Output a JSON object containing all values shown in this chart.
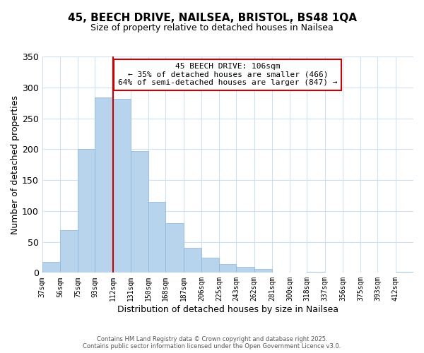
{
  "title": "45, BEECH DRIVE, NAILSEA, BRISTOL, BS48 1QA",
  "subtitle": "Size of property relative to detached houses in Nailsea",
  "bar_color": "#b8d4ec",
  "bar_edgecolor": "#8ab4d8",
  "background_color": "#ffffff",
  "grid_color": "#d0e0ef",
  "bin_labels": [
    "37sqm",
    "56sqm",
    "75sqm",
    "93sqm",
    "112sqm",
    "131sqm",
    "150sqm",
    "168sqm",
    "187sqm",
    "206sqm",
    "225sqm",
    "243sqm",
    "262sqm",
    "281sqm",
    "300sqm",
    "318sqm",
    "337sqm",
    "356sqm",
    "375sqm",
    "393sqm",
    "412sqm"
  ],
  "bin_edges": [
    37,
    56,
    75,
    93,
    112,
    131,
    150,
    168,
    187,
    206,
    225,
    243,
    262,
    281,
    300,
    318,
    337,
    356,
    375,
    393,
    412
  ],
  "bar_widths": [
    19,
    19,
    18,
    19,
    19,
    19,
    18,
    19,
    19,
    19,
    18,
    19,
    19,
    19,
    18,
    19,
    19,
    19,
    18,
    19,
    19
  ],
  "bar_heights": [
    17,
    69,
    200,
    284,
    281,
    197,
    115,
    80,
    40,
    24,
    14,
    10,
    6,
    0,
    0,
    1,
    0,
    0,
    0,
    0,
    1
  ],
  "xlabel": "Distribution of detached houses by size in Nailsea",
  "ylabel": "Number of detached properties",
  "ylim": [
    0,
    350
  ],
  "yticks": [
    0,
    50,
    100,
    150,
    200,
    250,
    300,
    350
  ],
  "vline_x": 112,
  "vline_color": "#cc0000",
  "annotation_title": "45 BEECH DRIVE: 106sqm",
  "annotation_line1": "← 35% of detached houses are smaller (466)",
  "annotation_line2": "64% of semi-detached houses are larger (847) →",
  "annotation_box_color": "#ffffff",
  "annotation_box_edgecolor": "#cc0000",
  "footer_line1": "Contains HM Land Registry data © Crown copyright and database right 2025.",
  "footer_line2": "Contains public sector information licensed under the Open Government Licence v3.0."
}
